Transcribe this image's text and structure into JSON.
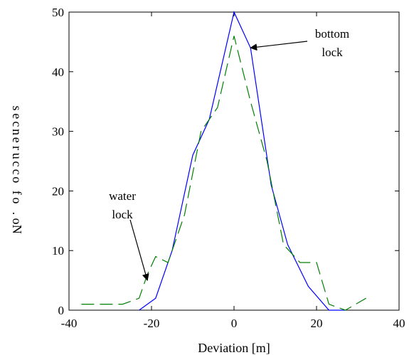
{
  "chart_data": {
    "type": "line",
    "title": "",
    "xlabel": "Deviation [m]",
    "ylabel": "No. of occurences",
    "xlim": [
      -40,
      40
    ],
    "ylim": [
      0,
      50
    ],
    "xticks": [
      -40,
      -20,
      0,
      20,
      40
    ],
    "yticks": [
      0,
      10,
      20,
      30,
      40,
      50
    ],
    "grid": false,
    "series": [
      {
        "color": "#0000ff",
        "style": "solid",
        "x": [
          -23,
          -19,
          -15,
          -10,
          -6,
          0,
          4,
          9,
          13,
          18,
          23,
          27
        ],
        "y": [
          0,
          2,
          10,
          26,
          32,
          50,
          44,
          21,
          11,
          4,
          0,
          0
        ]
      },
      {
        "color": "#008000",
        "style": "dashed",
        "x": [
          -37,
          -27,
          -23,
          -21,
          -19,
          -16,
          -12,
          -8,
          -4,
          0,
          4,
          8,
          12,
          16,
          20,
          23,
          27,
          32
        ],
        "y": [
          1,
          1,
          2,
          6,
          9,
          8,
          16,
          30,
          34,
          46,
          35,
          25,
          11,
          8,
          8,
          1,
          0,
          2
        ]
      }
    ],
    "annotations": [
      {
        "lines": [
          "bottom",
          "lock"
        ],
        "arrow_to": [
          4,
          44
        ]
      },
      {
        "lines": [
          "water",
          "lock"
        ],
        "arrow_to": [
          -21,
          5
        ]
      }
    ]
  }
}
